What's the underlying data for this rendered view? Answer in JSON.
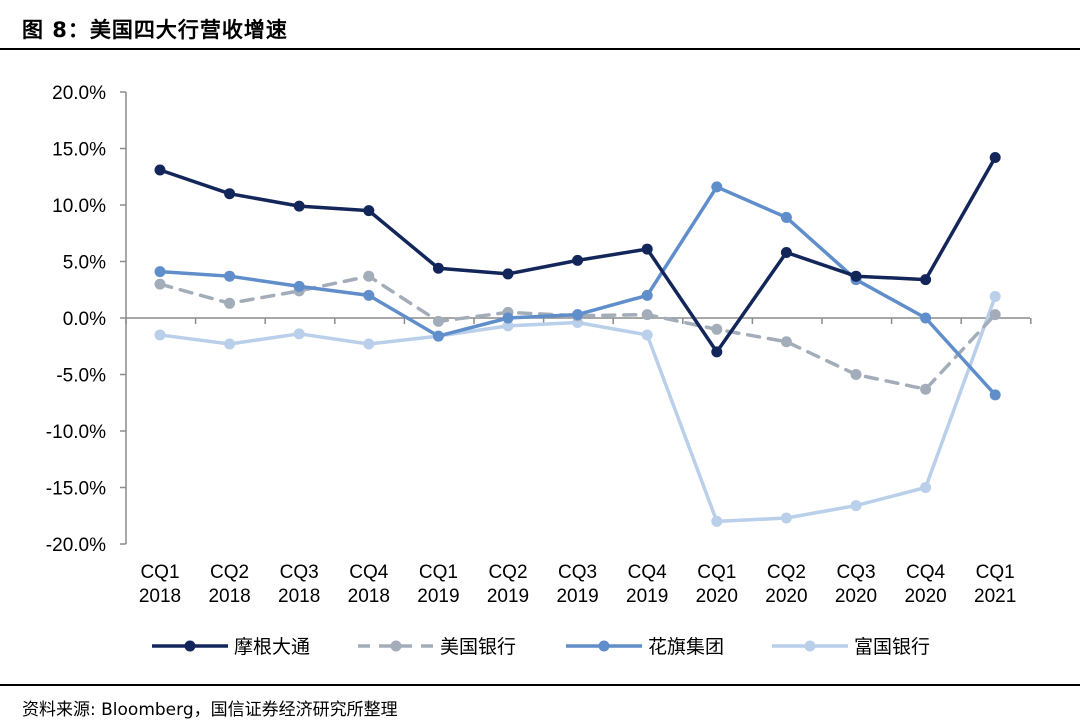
{
  "figure": {
    "title": "图 8：美国四大行营收增速",
    "source": "资料来源: Bloomberg，国信证券经济研究所整理"
  },
  "chart_data": {
    "type": "line",
    "categories": [
      "CQ1 2018",
      "CQ2 2018",
      "CQ3 2018",
      "CQ4 2018",
      "CQ1 2019",
      "CQ2 2019",
      "CQ3 2019",
      "CQ4 2019",
      "CQ1 2020",
      "CQ2 2020",
      "CQ3 2020",
      "CQ4 2020",
      "CQ1 2021"
    ],
    "category_lines": [
      [
        "CQ1",
        "2018"
      ],
      [
        "CQ2",
        "2018"
      ],
      [
        "CQ3",
        "2018"
      ],
      [
        "CQ4",
        "2018"
      ],
      [
        "CQ1",
        "2019"
      ],
      [
        "CQ2",
        "2019"
      ],
      [
        "CQ3",
        "2019"
      ],
      [
        "CQ4",
        "2019"
      ],
      [
        "CQ1",
        "2020"
      ],
      [
        "CQ2",
        "2020"
      ],
      [
        "CQ3",
        "2020"
      ],
      [
        "CQ4",
        "2020"
      ],
      [
        "CQ1",
        "2021"
      ]
    ],
    "ylim": [
      -20,
      20
    ],
    "ytick_values": [
      20,
      15,
      10,
      5,
      0,
      -5,
      -10,
      -15,
      -20
    ],
    "ytick_labels": [
      "20.0%",
      "15.0%",
      "10.0%",
      "5.0%",
      "0.0%",
      "-5.0%",
      "-10.0%",
      "-15.0%",
      "-20.0%"
    ],
    "legend_position": "bottom",
    "series": [
      {
        "name": "摩根大通",
        "color": "#13265a",
        "dash": false,
        "values": [
          13.1,
          11.0,
          9.9,
          9.5,
          4.4,
          3.9,
          5.1,
          6.1,
          -3.0,
          5.8,
          3.7,
          3.4,
          14.2
        ]
      },
      {
        "name": "美国银行",
        "color": "#a3adb9",
        "dash": true,
        "values": [
          3.0,
          1.3,
          2.4,
          3.7,
          -0.3,
          0.5,
          0.2,
          0.3,
          -1.0,
          -2.1,
          -5.0,
          -6.3,
          0.3
        ]
      },
      {
        "name": "花旗集团",
        "color": "#5f8ecb",
        "dash": false,
        "values": [
          4.1,
          3.7,
          2.8,
          2.0,
          -1.6,
          0.0,
          0.3,
          2.0,
          11.6,
          8.9,
          3.4,
          0.0,
          -6.8
        ]
      },
      {
        "name": "富国银行",
        "color": "#b9cfea",
        "dash": false,
        "values": [
          -1.5,
          -2.3,
          -1.4,
          -2.3,
          -1.6,
          -0.7,
          -0.4,
          -1.5,
          -18.0,
          -17.7,
          -16.6,
          -15.0,
          1.9
        ]
      }
    ]
  }
}
